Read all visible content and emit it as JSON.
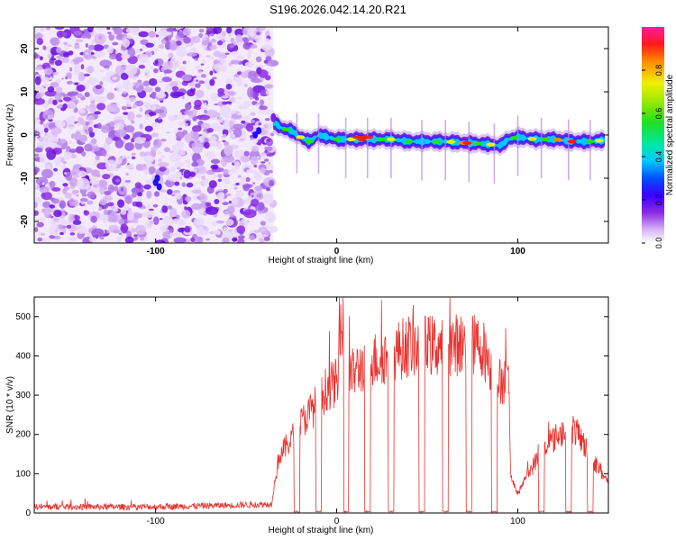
{
  "page_title": "S196.2026.042.14.20.R21",
  "chart_data": [
    {
      "type": "heatmap",
      "title": "S196.2026.042.14.20.R21",
      "xlabel": "Height of straight line (km)",
      "ylabel": "Frequency (Hz)",
      "xlim": [
        -167,
        150
      ],
      "ylim": [
        -25,
        25
      ],
      "x_ticks": [
        -100,
        0,
        100
      ],
      "x_tick_labels": [
        "-100",
        "0",
        "100"
      ],
      "y_ticks": [
        -20,
        -10,
        0,
        10,
        20
      ],
      "y_tick_labels": [
        "-20",
        "-10",
        "0",
        "10",
        "20"
      ],
      "noise_region_x": [
        -167,
        -35
      ],
      "ridge": {
        "x": [
          -35,
          -30,
          -25,
          -20,
          -15,
          -10,
          0,
          10,
          20,
          30,
          40,
          50,
          60,
          70,
          80,
          85,
          90,
          95,
          100,
          110,
          120,
          130,
          140,
          148
        ],
        "freq": [
          3,
          1.5,
          1,
          -0.5,
          -1.5,
          0,
          -1,
          -1,
          -1,
          -1,
          -1.5,
          -1.5,
          -1.5,
          -1.8,
          -2,
          -2.2,
          -2.5,
          -1,
          -0.5,
          -1,
          -1,
          -1.5,
          -1.5,
          -1.2
        ]
      },
      "colorbar": {
        "label": "Normalized spectral amplitude",
        "range": [
          0,
          1
        ],
        "ticks": [
          0.0,
          0.2,
          0.4,
          0.6,
          0.8
        ],
        "tick_labels": [
          "0.0",
          "0.2",
          "0.4",
          "0.6",
          "0.8"
        ]
      }
    },
    {
      "type": "line",
      "xlabel": "Height of straight line (km)",
      "ylabel": "SNR (10 * v/v)",
      "xlim": [
        -167,
        150
      ],
      "ylim": [
        0,
        550
      ],
      "x_ticks": [
        -100,
        0,
        100
      ],
      "x_tick_labels": [
        "-100",
        "0",
        "100"
      ],
      "y_ticks": [
        0,
        100,
        200,
        300,
        400,
        500
      ],
      "y_tick_labels": [
        "0",
        "100",
        "200",
        "300",
        "400",
        "500"
      ],
      "series": [
        {
          "name": "SNR",
          "color": "#e8322e",
          "envelope": {
            "x": [
              -167,
              -100,
              -60,
              -36,
              -32,
              -25,
              -20,
              -15,
              -10,
              -5,
              0,
              5,
              10,
              15,
              20,
              25,
              30,
              40,
              50,
              60,
              70,
              80,
              85,
              88,
              92,
              95,
              96,
              100,
              105,
              110,
              115,
              120,
              125,
              130,
              135,
              140,
              145,
              150
            ],
            "y": [
              18,
              18,
              22,
              25,
              150,
              200,
              240,
              270,
              300,
              340,
              350,
              360,
              380,
              400,
              410,
              420,
              430,
              450,
              450,
              450,
              455,
              450,
              400,
              350,
              360,
              350,
              100,
              50,
              100,
              140,
              170,
              200,
              220,
              230,
              200,
              150,
              120,
              80
            ]
          },
          "dropouts_x": [
            -22,
            -10,
            5,
            17,
            30,
            47,
            60,
            73,
            87,
            113,
            128,
            140
          ]
        }
      ]
    }
  ],
  "colors": {
    "line": "#e8322e",
    "noise": "#8a2be2"
  }
}
